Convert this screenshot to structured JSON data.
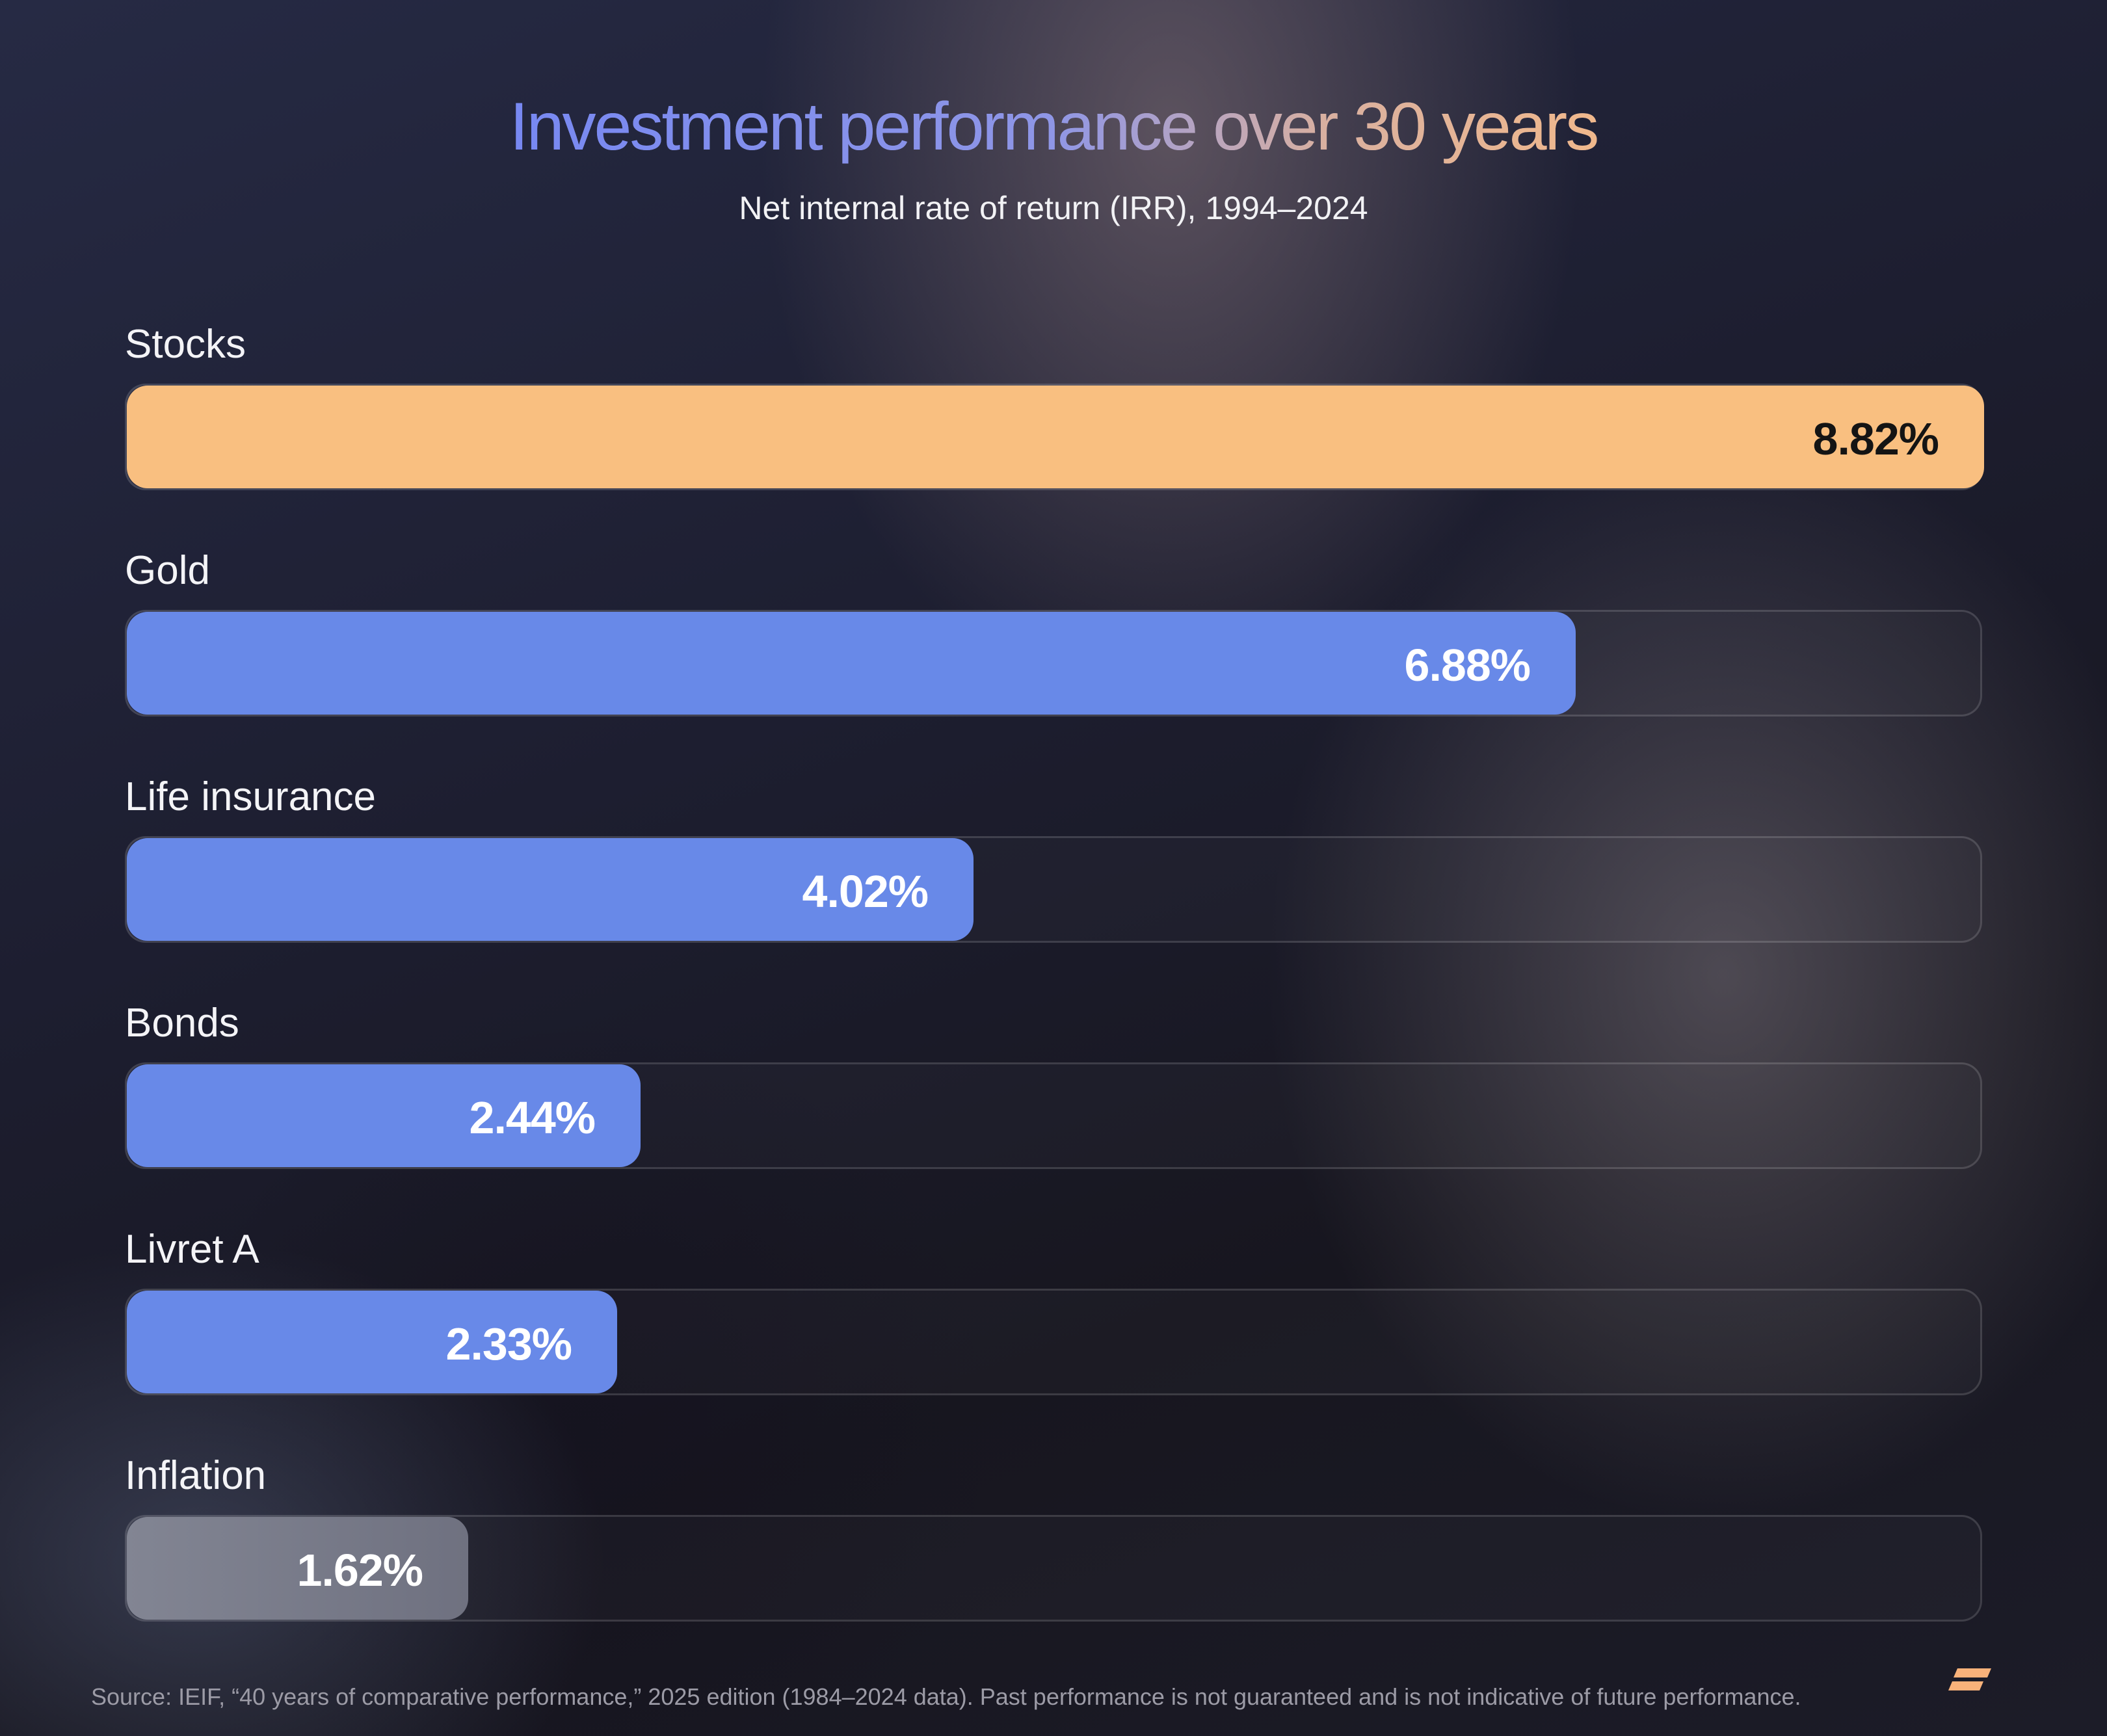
{
  "chart_data": {
    "type": "bar",
    "orientation": "horizontal",
    "title": "Investment performance over 30 years",
    "subtitle": "Net internal rate of return (IRR), 1994–2024",
    "xlim": [
      0,
      8.82
    ],
    "categories": [
      "Stocks",
      "Gold",
      "Life insurance",
      "Bonds",
      "Livret A",
      "Inflation"
    ],
    "values": [
      8.82,
      6.88,
      4.02,
      2.44,
      2.33,
      1.62
    ],
    "value_labels": [
      "8.82%",
      "6.88%",
      "4.02%",
      "2.44%",
      "2.33%",
      "1.62%"
    ],
    "bar_colors": [
      "#f9bf80",
      "#6889e8",
      "#6889e8",
      "#6889e8",
      "#6889e8",
      "#7b7d8a"
    ],
    "value_label_colors": [
      "#141414",
      "#ffffff",
      "#ffffff",
      "#ffffff",
      "#ffffff",
      "#ffffff"
    ],
    "grid": false,
    "legend": "none"
  },
  "footer": {
    "source": "Source: IEIF, “40 years of comparative performance,” 2025 edition (1984–2024 data). Past performance is not guaranteed and is not indicative of future performance."
  },
  "logo": {
    "icon": "brand-logo-icon",
    "color": "#f9b27a"
  }
}
